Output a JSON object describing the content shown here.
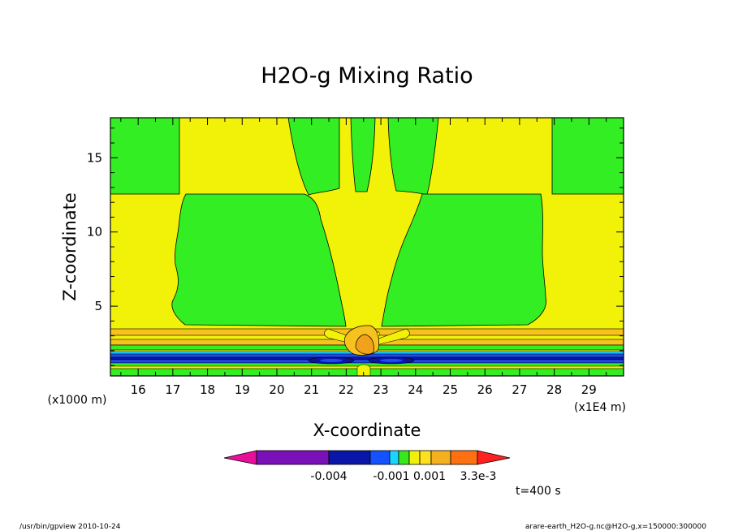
{
  "chart_data": {
    "type": "heatmap",
    "title": "H2O-g Mixing Ratio",
    "xlabel": "X-coordinate",
    "ylabel": "Z-coordinate",
    "x_unit": "(x1E4 m)",
    "y_unit": "(x1000 m)",
    "xlim": [
      15.2,
      30.0
    ],
    "ylim": [
      0.3,
      17.7
    ],
    "x_ticks": [
      "16",
      "17",
      "18",
      "19",
      "20",
      "21",
      "22",
      "23",
      "24",
      "25",
      "26",
      "27",
      "28",
      "29"
    ],
    "y_ticks": [
      "5",
      "10",
      "15"
    ],
    "colorbar": {
      "tick_labels": [
        "-0.004",
        "-0.001",
        "0.001",
        "3.3e-3"
      ],
      "colors": [
        "#e8109a",
        "#7a10b8",
        "#0a16a8",
        "#1452ff",
        "#19d6ff",
        "#36e81c",
        "#f0f00c",
        "#ffe01e",
        "#f5b020",
        "#ff7010",
        "#ff2020"
      ]
    },
    "time_label": "t=400 s",
    "footer_left": "/usr/bin/gpview   2010-10-24",
    "footer_right": "arare-earth_H2O-g.nc@H2O-g,x=150000:300000",
    "field_colors": {
      "green": "#33ee22",
      "yellow": "#f2f208",
      "light_orange": "#f7c21d",
      "orange": "#f2a21a",
      "blue": "#1a4cf6",
      "dark_blue": "#0b14a6",
      "cyan": "#19d6ff"
    }
  }
}
